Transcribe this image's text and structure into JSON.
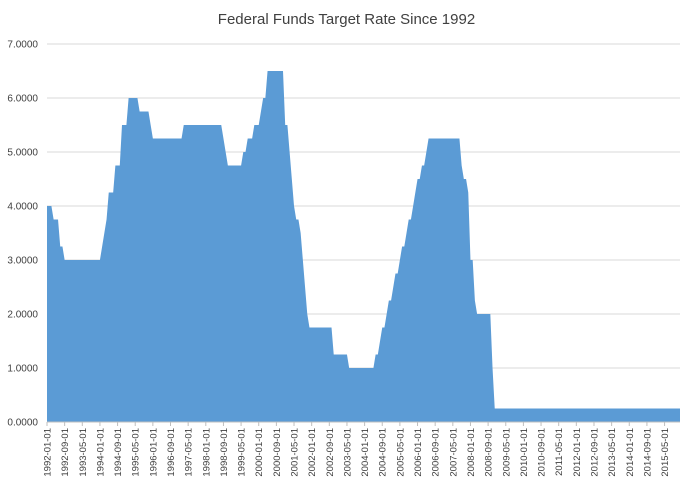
{
  "chart_data": {
    "type": "area",
    "title": "Federal Funds Target Rate Since 1992",
    "xlabel": "",
    "ylabel": "",
    "ylim": [
      0,
      7
    ],
    "yticks": [
      "0.0000",
      "1.0000",
      "2.0000",
      "3.0000",
      "4.0000",
      "5.0000",
      "6.0000",
      "7.0000"
    ],
    "grid": true,
    "xrange": [
      "1992-01-01",
      "2015-12-01"
    ],
    "xticks": [
      "1992-01-01",
      "1992-09-01",
      "1993-05-01",
      "1994-01-01",
      "1994-09-01",
      "1995-05-01",
      "1996-01-01",
      "1996-09-01",
      "1997-05-01",
      "1998-01-01",
      "1998-09-01",
      "1999-05-01",
      "2000-01-01",
      "2000-09-01",
      "2001-05-01",
      "2002-01-01",
      "2002-09-01",
      "2003-05-01",
      "2004-01-01",
      "2004-09-01",
      "2005-05-01",
      "2006-01-01",
      "2006-09-01",
      "2007-05-01",
      "2008-01-01",
      "2008-09-01",
      "2009-05-01",
      "2010-01-01",
      "2010-09-01",
      "2011-05-01",
      "2012-01-01",
      "2012-09-01",
      "2013-05-01",
      "2014-01-01",
      "2014-09-01",
      "2015-05-01"
    ],
    "series": [
      {
        "color": "#5b9bd5",
        "points": [
          [
            "1992-01-01",
            4.0
          ],
          [
            "1992-03-01",
            4.0
          ],
          [
            "1992-04-01",
            3.75
          ],
          [
            "1992-06-01",
            3.75
          ],
          [
            "1992-07-01",
            3.25
          ],
          [
            "1992-08-01",
            3.25
          ],
          [
            "1992-09-01",
            3.0
          ],
          [
            "1994-01-01",
            3.0
          ],
          [
            "1994-02-01",
            3.25
          ],
          [
            "1994-03-01",
            3.5
          ],
          [
            "1994-04-01",
            3.75
          ],
          [
            "1994-05-01",
            4.25
          ],
          [
            "1994-07-01",
            4.25
          ],
          [
            "1994-08-01",
            4.75
          ],
          [
            "1994-10-01",
            4.75
          ],
          [
            "1994-11-01",
            5.5
          ],
          [
            "1995-01-01",
            5.5
          ],
          [
            "1995-02-01",
            6.0
          ],
          [
            "1995-06-01",
            6.0
          ],
          [
            "1995-07-01",
            5.75
          ],
          [
            "1995-11-01",
            5.75
          ],
          [
            "1995-12-01",
            5.5
          ],
          [
            "1996-01-01",
            5.25
          ],
          [
            "1997-02-01",
            5.25
          ],
          [
            "1997-03-01",
            5.5
          ],
          [
            "1998-08-01",
            5.5
          ],
          [
            "1998-09-01",
            5.25
          ],
          [
            "1998-10-01",
            5.0
          ],
          [
            "1998-11-01",
            4.75
          ],
          [
            "1999-05-01",
            4.75
          ],
          [
            "1999-06-01",
            5.0
          ],
          [
            "1999-07-01",
            5.0
          ],
          [
            "1999-08-01",
            5.25
          ],
          [
            "1999-10-01",
            5.25
          ],
          [
            "1999-11-01",
            5.5
          ],
          [
            "2000-01-01",
            5.5
          ],
          [
            "2000-02-01",
            5.75
          ],
          [
            "2000-03-01",
            6.0
          ],
          [
            "2000-04-01",
            6.0
          ],
          [
            "2000-05-01",
            6.5
          ],
          [
            "2000-12-01",
            6.5
          ],
          [
            "2001-01-01",
            5.5
          ],
          [
            "2001-02-01",
            5.5
          ],
          [
            "2001-03-01",
            5.0
          ],
          [
            "2001-04-01",
            4.5
          ],
          [
            "2001-05-01",
            4.0
          ],
          [
            "2001-06-01",
            3.75
          ],
          [
            "2001-07-01",
            3.75
          ],
          [
            "2001-08-01",
            3.5
          ],
          [
            "2001-09-01",
            3.0
          ],
          [
            "2001-10-01",
            2.5
          ],
          [
            "2001-11-01",
            2.0
          ],
          [
            "2001-12-01",
            1.75
          ],
          [
            "2002-10-01",
            1.75
          ],
          [
            "2002-11-01",
            1.25
          ],
          [
            "2003-05-01",
            1.25
          ],
          [
            "2003-06-01",
            1.0
          ],
          [
            "2004-05-01",
            1.0
          ],
          [
            "2004-06-01",
            1.25
          ],
          [
            "2004-07-01",
            1.25
          ],
          [
            "2004-08-01",
            1.5
          ],
          [
            "2004-09-01",
            1.75
          ],
          [
            "2004-10-01",
            1.75
          ],
          [
            "2004-11-01",
            2.0
          ],
          [
            "2004-12-01",
            2.25
          ],
          [
            "2005-01-01",
            2.25
          ],
          [
            "2005-02-01",
            2.5
          ],
          [
            "2005-03-01",
            2.75
          ],
          [
            "2005-04-01",
            2.75
          ],
          [
            "2005-05-01",
            3.0
          ],
          [
            "2005-06-01",
            3.25
          ],
          [
            "2005-07-01",
            3.25
          ],
          [
            "2005-08-01",
            3.5
          ],
          [
            "2005-09-01",
            3.75
          ],
          [
            "2005-10-01",
            3.75
          ],
          [
            "2005-11-01",
            4.0
          ],
          [
            "2005-12-01",
            4.25
          ],
          [
            "2006-01-01",
            4.5
          ],
          [
            "2006-02-01",
            4.5
          ],
          [
            "2006-03-01",
            4.75
          ],
          [
            "2006-04-01",
            4.75
          ],
          [
            "2006-05-01",
            5.0
          ],
          [
            "2006-06-01",
            5.25
          ],
          [
            "2007-08-01",
            5.25
          ],
          [
            "2007-09-01",
            4.75
          ],
          [
            "2007-10-01",
            4.5
          ],
          [
            "2007-11-01",
            4.5
          ],
          [
            "2007-12-01",
            4.25
          ],
          [
            "2008-01-01",
            3.0
          ],
          [
            "2008-02-01",
            3.0
          ],
          [
            "2008-03-01",
            2.25
          ],
          [
            "2008-04-01",
            2.0
          ],
          [
            "2008-10-01",
            2.0
          ],
          [
            "2008-11-01",
            1.0
          ],
          [
            "2008-12-01",
            0.25
          ],
          [
            "2015-12-01",
            0.25
          ]
        ]
      }
    ]
  }
}
